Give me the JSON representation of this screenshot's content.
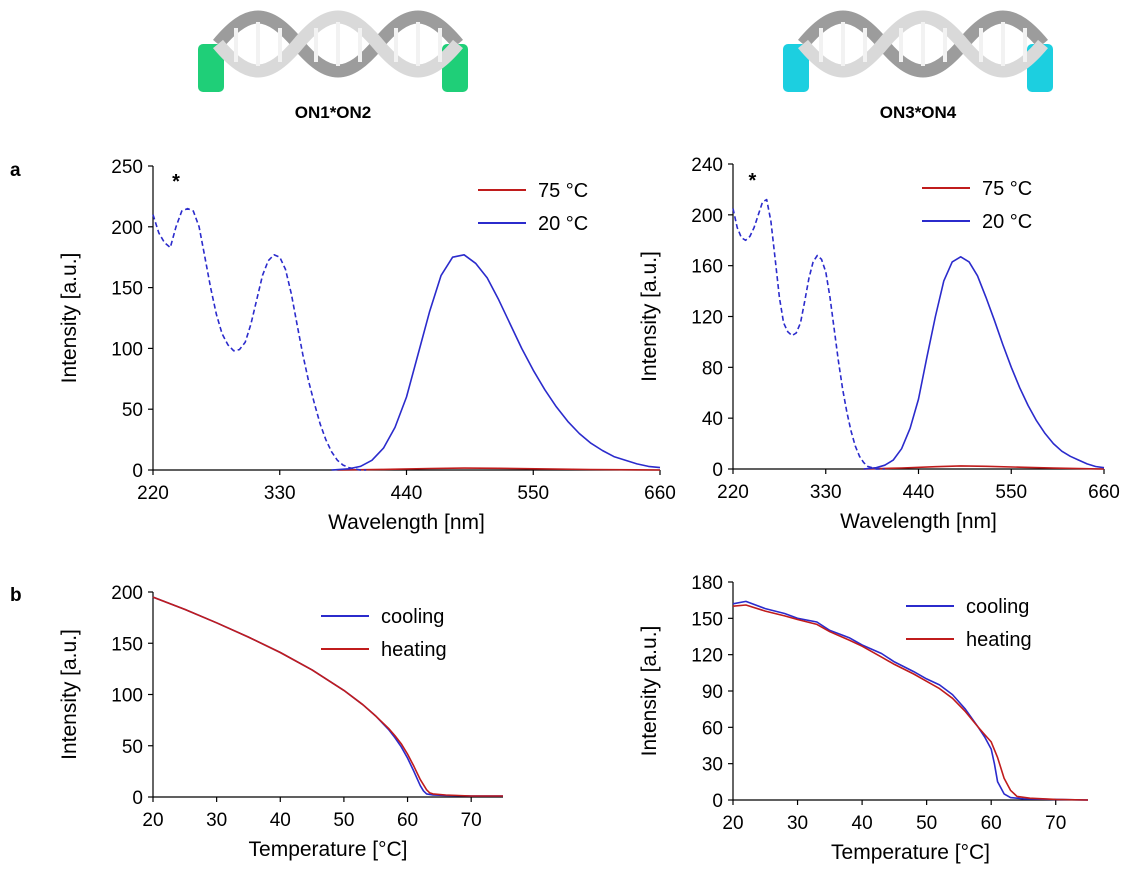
{
  "duplexes": [
    {
      "label": "ON1*ON2",
      "accent": "#1fcf78"
    },
    {
      "label": "ON3*ON4",
      "accent": "#1ccfe0"
    }
  ],
  "panel_labels": {
    "a": "a",
    "b": "b"
  },
  "asterisk": "*",
  "colors": {
    "hot": "#c01c1c",
    "cold": "#2b2bcc"
  },
  "chart_data": [
    {
      "type": "line",
      "panel": "a",
      "xlabel": "Wavelength [nm]",
      "ylabel": "Intensity [a.u.]",
      "xlim": [
        220,
        660
      ],
      "ylim": [
        0,
        250
      ],
      "xticks": [
        220,
        330,
        440,
        550,
        660
      ],
      "yticks": [
        0,
        50,
        100,
        150,
        200,
        250
      ],
      "legend_position": "top-right",
      "annotation": {
        "text": "*",
        "x": 240,
        "y": 232
      },
      "series": [
        {
          "name": "75 °C",
          "color": "#c01c1c",
          "style": "solid",
          "x": [
            380,
            420,
            460,
            490,
            520,
            560,
            600,
            660
          ],
          "y": [
            0,
            0.5,
            1.2,
            1.6,
            1.4,
            0.9,
            0.4,
            0
          ]
        },
        {
          "name": "20 °C",
          "color": "#2b2bcc",
          "style": "solid",
          "x": [
            375,
            390,
            400,
            410,
            420,
            430,
            440,
            450,
            460,
            470,
            480,
            490,
            500,
            510,
            520,
            530,
            540,
            550,
            560,
            570,
            580,
            590,
            600,
            610,
            620,
            630,
            640,
            650,
            660
          ],
          "y": [
            0,
            1,
            3,
            8,
            18,
            35,
            60,
            95,
            130,
            160,
            175,
            177,
            170,
            158,
            140,
            120,
            100,
            82,
            66,
            52,
            40,
            30,
            22,
            16,
            11,
            8,
            5,
            3,
            2
          ]
        },
        {
          "name": "",
          "color": "#2b2bcc",
          "style": "dashed",
          "x": [
            220,
            225,
            230,
            235,
            240,
            245,
            250,
            255,
            260,
            265,
            270,
            275,
            280,
            285,
            290,
            295,
            300,
            305,
            310,
            315,
            320,
            325,
            330,
            335,
            340,
            345,
            350,
            355,
            360,
            365,
            370,
            375,
            380,
            385,
            390,
            395,
            400,
            405
          ],
          "y": [
            210,
            195,
            187,
            183,
            200,
            213,
            215,
            213,
            200,
            175,
            150,
            128,
            112,
            103,
            98,
            99,
            105,
            120,
            140,
            160,
            172,
            177,
            175,
            165,
            145,
            120,
            95,
            73,
            55,
            38,
            25,
            15,
            8,
            4,
            2,
            1,
            0,
            0
          ]
        }
      ]
    },
    {
      "type": "line",
      "panel": "a",
      "xlabel": "Wavelength [nm]",
      "ylabel": "Intensity [a.u.]",
      "xlim": [
        220,
        660
      ],
      "ylim": [
        0,
        240
      ],
      "xticks": [
        220,
        330,
        440,
        550,
        660
      ],
      "yticks": [
        0,
        40,
        80,
        120,
        160,
        200,
        240
      ],
      "legend_position": "top-right",
      "annotation": {
        "text": "*",
        "x": 243,
        "y": 222
      },
      "series": [
        {
          "name": "75 °C",
          "color": "#c01c1c",
          "style": "solid",
          "x": [
            375,
            420,
            460,
            490,
            520,
            560,
            600,
            660
          ],
          "y": [
            0,
            0.8,
            1.8,
            2.4,
            2.1,
            1.4,
            0.7,
            0
          ]
        },
        {
          "name": "20 °C",
          "color": "#2b2bcc",
          "style": "solid",
          "x": [
            375,
            390,
            400,
            410,
            420,
            430,
            440,
            450,
            460,
            470,
            480,
            490,
            500,
            510,
            520,
            530,
            540,
            550,
            560,
            570,
            580,
            590,
            600,
            610,
            620,
            630,
            640,
            650,
            660
          ],
          "y": [
            0,
            1,
            3,
            7,
            16,
            32,
            55,
            88,
            120,
            148,
            163,
            167,
            163,
            152,
            135,
            117,
            98,
            80,
            64,
            50,
            38,
            28,
            20,
            14,
            10,
            7,
            4,
            2,
            1
          ]
        },
        {
          "name": "",
          "color": "#2b2bcc",
          "style": "dashed",
          "x": [
            220,
            225,
            230,
            235,
            240,
            245,
            250,
            255,
            260,
            265,
            270,
            275,
            280,
            285,
            290,
            295,
            300,
            305,
            310,
            315,
            320,
            325,
            330,
            335,
            340,
            345,
            350,
            355,
            360,
            365,
            370,
            375,
            380,
            385,
            390,
            395,
            400
          ],
          "y": [
            205,
            190,
            182,
            180,
            183,
            190,
            200,
            210,
            212,
            195,
            165,
            135,
            115,
            108,
            105,
            107,
            115,
            132,
            150,
            163,
            168,
            165,
            155,
            135,
            110,
            85,
            63,
            45,
            30,
            18,
            10,
            5,
            2,
            1,
            0,
            0,
            0
          ]
        }
      ]
    },
    {
      "type": "line",
      "panel": "b",
      "xlabel": "Temperature [°C]",
      "ylabel": "Intensity [a.u.]",
      "xlim": [
        20,
        75
      ],
      "ylim": [
        0,
        200
      ],
      "xticks": [
        20,
        30,
        40,
        50,
        60,
        70
      ],
      "yticks": [
        0,
        50,
        100,
        150,
        200
      ],
      "legend_position": "top-right",
      "series": [
        {
          "name": "cooling",
          "color": "#2b2bcc",
          "style": "solid",
          "x": [
            20,
            25,
            30,
            35,
            40,
            45,
            50,
            53,
            55,
            57,
            58,
            59,
            60,
            61,
            62,
            62.5,
            63,
            64,
            66,
            70,
            75
          ],
          "y": [
            195,
            183,
            170,
            156,
            141,
            124,
            104,
            90,
            79,
            66,
            58,
            49,
            38,
            25,
            11,
            6,
            3,
            2,
            1.5,
            1,
            1
          ]
        },
        {
          "name": "heating",
          "color": "#c01c1c",
          "style": "solid",
          "x": [
            20,
            25,
            30,
            35,
            40,
            45,
            50,
            53,
            55,
            57,
            58,
            59,
            60,
            61,
            62,
            63,
            63.5,
            64,
            66,
            70,
            75
          ],
          "y": [
            195,
            183,
            170,
            156,
            141,
            124,
            104,
            90,
            79,
            67,
            60,
            52,
            42,
            30,
            17,
            7,
            4,
            3,
            2,
            1,
            1
          ]
        }
      ]
    },
    {
      "type": "line",
      "panel": "b",
      "xlabel": "Temperature [°C]",
      "ylabel": "Intensity [a.u.]",
      "xlim": [
        20,
        75
      ],
      "ylim": [
        0,
        180
      ],
      "xticks": [
        20,
        30,
        40,
        50,
        60,
        70
      ],
      "yticks": [
        0,
        30,
        60,
        90,
        120,
        150,
        180
      ],
      "legend_position": "top-right",
      "series": [
        {
          "name": "cooling",
          "color": "#2b2bcc",
          "style": "solid",
          "x": [
            20,
            22,
            25,
            28,
            30,
            33,
            35,
            38,
            40,
            43,
            45,
            48,
            50,
            52,
            54,
            56,
            58,
            59,
            60,
            60.5,
            61,
            62,
            63,
            65,
            70,
            75
          ],
          "y": [
            162,
            164,
            158,
            154,
            150,
            147,
            140,
            134,
            128,
            121,
            114,
            106,
            100,
            95,
            87,
            75,
            60,
            52,
            42,
            30,
            15,
            5,
            2,
            1,
            0.5,
            0
          ]
        },
        {
          "name": "heating",
          "color": "#c01c1c",
          "style": "solid",
          "x": [
            20,
            22,
            25,
            28,
            30,
            33,
            35,
            38,
            40,
            43,
            45,
            48,
            50,
            52,
            54,
            56,
            58,
            59,
            60,
            61,
            62,
            63,
            64,
            66,
            70,
            75
          ],
          "y": [
            160,
            161,
            156,
            152,
            149,
            145,
            139,
            132,
            127,
            118,
            112,
            104,
            98,
            92,
            84,
            73,
            60,
            54,
            48,
            35,
            18,
            8,
            3,
            1.5,
            0.5,
            0
          ]
        }
      ]
    }
  ]
}
